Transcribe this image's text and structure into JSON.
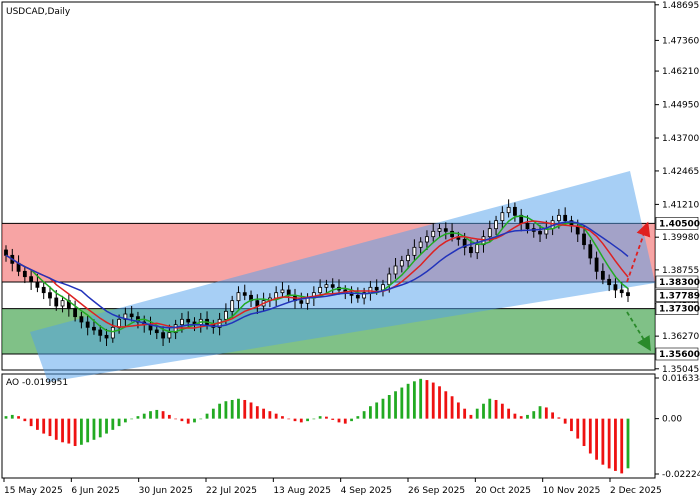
{
  "chart_data": {
    "type": "candlestick",
    "title": "USDCAD,Daily",
    "y_ticks": [
      "1.48695",
      "1.47360",
      "1.46210",
      "1.44950",
      "1.43700",
      "1.42465",
      "1.41210",
      "1.39980",
      "1.38755",
      "1.37500",
      "1.36270",
      "1.35045"
    ],
    "price_range": [
      1.35,
      1.488
    ],
    "levels": [
      {
        "label": "1.40500",
        "value": 1.405,
        "kind": "resistance"
      },
      {
        "label": "1.38300",
        "value": 1.383,
        "kind": "pivot"
      },
      {
        "label": "1.37300",
        "value": 1.373,
        "kind": "support"
      },
      {
        "label": "1.35600",
        "value": 1.356,
        "kind": "target"
      }
    ],
    "current_price": {
      "label": "1.37789",
      "value": 1.37789
    },
    "x_labels": [
      "15 May 2025",
      "6 Jun 2025",
      "30 Jun 2025",
      "22 Jul 2025",
      "13 Aug 2025",
      "4 Sep 2025",
      "26 Sep 2025",
      "20 Oct 2025",
      "10 Nov 2025",
      "2 Dec 2025"
    ],
    "candles_close": [
      1.393,
      1.39,
      1.387,
      1.385,
      1.383,
      1.381,
      1.379,
      1.377,
      1.374,
      1.376,
      1.373,
      1.37,
      1.368,
      1.366,
      1.365,
      1.363,
      1.362,
      1.366,
      1.369,
      1.371,
      1.37,
      1.368,
      1.367,
      1.365,
      1.364,
      1.362,
      1.364,
      1.367,
      1.369,
      1.368,
      1.367,
      1.369,
      1.367,
      1.366,
      1.369,
      1.372,
      1.376,
      1.379,
      1.378,
      1.376,
      1.374,
      1.376,
      1.377,
      1.379,
      1.38,
      1.378,
      1.376,
      1.375,
      1.377,
      1.379,
      1.381,
      1.382,
      1.381,
      1.38,
      1.379,
      1.378,
      1.377,
      1.379,
      1.381,
      1.38,
      1.382,
      1.386,
      1.389,
      1.391,
      1.393,
      1.396,
      1.398,
      1.4,
      1.402,
      1.403,
      1.402,
      1.4,
      1.399,
      1.396,
      1.394,
      1.397,
      1.4,
      1.403,
      1.406,
      1.409,
      1.411,
      1.408,
      1.405,
      1.403,
      1.402,
      1.401,
      1.403,
      1.406,
      1.408,
      1.406,
      1.404,
      1.401,
      1.397,
      1.392,
      1.387,
      1.384,
      1.382,
      1.38,
      1.379,
      1.37789
    ],
    "indicator": {
      "name": "AO",
      "value_label": "-0.019951",
      "y_ticks": [
        "0.016334",
        "0.00",
        "-0.022242"
      ],
      "range": [
        -0.022242,
        0.016334
      ],
      "values": [
        0.001,
        0.0015,
        0.001,
        -0.001,
        -0.003,
        -0.0045,
        -0.006,
        -0.007,
        -0.0085,
        -0.0095,
        -0.01,
        -0.011,
        -0.0105,
        -0.0095,
        -0.0085,
        -0.0075,
        -0.006,
        -0.0045,
        -0.003,
        -0.0015,
        0.0,
        0.001,
        0.002,
        0.003,
        0.0035,
        0.003,
        0.0015,
        0.0,
        -0.001,
        -0.002,
        -0.0015,
        0.0,
        0.002,
        0.004,
        0.006,
        0.007,
        0.0075,
        0.008,
        0.0075,
        0.0065,
        0.005,
        0.004,
        0.003,
        0.002,
        0.001,
        0.0,
        -0.001,
        -0.0015,
        -0.001,
        0.0,
        0.001,
        0.0008,
        -0.0005,
        -0.0015,
        -0.002,
        -0.001,
        0.001,
        0.003,
        0.005,
        0.0065,
        0.008,
        0.0095,
        0.011,
        0.0125,
        0.014,
        0.015,
        0.016,
        0.0155,
        0.0145,
        0.013,
        0.011,
        0.009,
        0.0065,
        0.004,
        0.0015,
        0.004,
        0.006,
        0.008,
        0.0075,
        0.006,
        0.004,
        0.002,
        0.001,
        0.0015,
        0.003,
        0.005,
        0.0045,
        0.0025,
        0.0005,
        -0.002,
        -0.005,
        -0.008,
        -0.011,
        -0.014,
        -0.0165,
        -0.0185,
        -0.02,
        -0.021,
        -0.022,
        -0.019951
      ]
    }
  }
}
